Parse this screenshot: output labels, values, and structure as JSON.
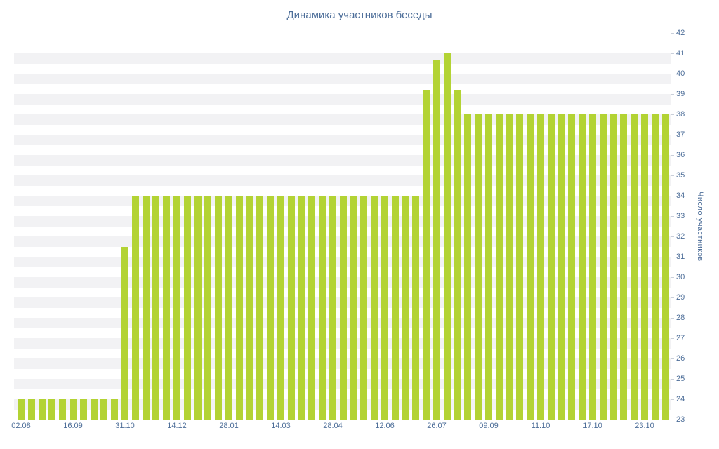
{
  "page": {
    "background": "#ffffff"
  },
  "chart_data": {
    "type": "bar",
    "title": "Динамика участников беседы",
    "xlabel": "",
    "ylabel": "Число участников",
    "ylim": [
      23,
      42
    ],
    "ytick_step": 1,
    "y_ticks": [
      23,
      24,
      25,
      26,
      27,
      28,
      29,
      30,
      31,
      32,
      33,
      34,
      35,
      36,
      37,
      38,
      39,
      40,
      41,
      42
    ],
    "x_tick_labels": [
      "02.08",
      "16.09",
      "31.10",
      "14.12",
      "28.01",
      "14.03",
      "28.04",
      "12.06",
      "26.07",
      "09.09",
      "11.10",
      "17.10",
      "23.10"
    ],
    "x_tick_every": 5,
    "values": [
      24,
      24,
      24,
      24,
      24,
      24,
      24,
      24,
      24,
      24,
      31.5,
      34,
      34,
      34,
      34,
      34,
      34,
      34,
      34,
      34,
      34,
      34,
      34,
      34,
      34,
      34,
      34,
      34,
      34,
      34,
      34,
      34,
      34,
      34,
      34,
      34,
      34,
      34,
      34,
      39.2,
      40.7,
      41,
      39.2,
      38,
      38,
      38,
      38,
      38,
      38,
      38,
      38,
      38,
      38,
      38,
      38,
      38,
      38,
      38,
      38,
      38,
      38,
      38,
      38
    ],
    "bar_color": "#b3d334",
    "stripe_color": "#f2f2f4",
    "text_color": "#4d6e99",
    "axis_color": "#c9cfda",
    "legend": "none",
    "grid": "striped-horizontal-bands"
  }
}
